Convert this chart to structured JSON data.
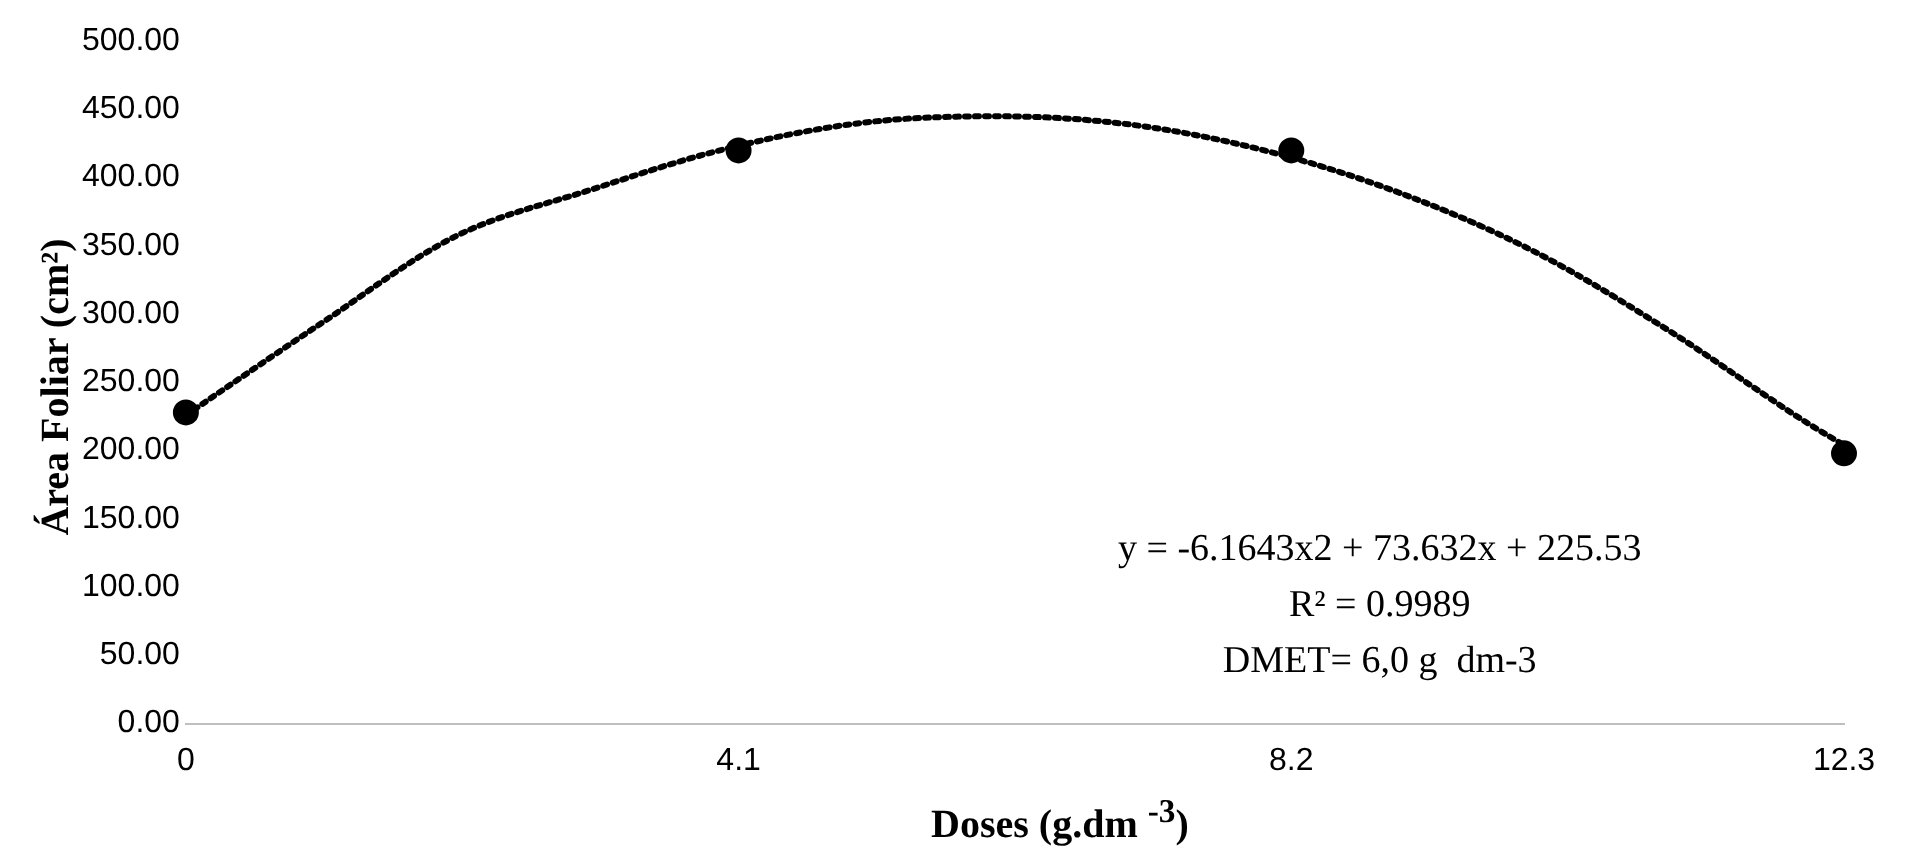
{
  "chart_data": {
    "type": "scatter",
    "xlabel": "Doses (g.dm $^{-3}$)",
    "ylabel": "Área Foliar (cm²)",
    "xlim": [
      0,
      12.3
    ],
    "xticks": [
      0,
      4.1,
      8.2,
      12.3
    ],
    "ylim": [
      0,
      500
    ],
    "yticks": [
      {
        "value": 0,
        "label": "0.00"
      },
      {
        "value": 50,
        "label": "50.00"
      },
      {
        "value": 100,
        "label": "100.00"
      },
      {
        "value": 150,
        "label": "150.00"
      },
      {
        "value": 200,
        "label": "200.00"
      },
      {
        "value": 250,
        "label": "250.00"
      },
      {
        "value": 300,
        "label": "300.00"
      },
      {
        "value": 350,
        "label": "350.00"
      },
      {
        "value": 400,
        "label": "400.00"
      },
      {
        "value": 450,
        "label": "450.00"
      },
      {
        "value": 500,
        "label": "500.00"
      }
    ],
    "grid": false,
    "legend": false,
    "series": [
      {
        "color": "#000000",
        "marker": "circle",
        "x": [
          0,
          4.1,
          8.2,
          12.3
        ],
        "values": [
          228,
          420,
          420,
          198
        ]
      },
      {
        "type": "line",
        "color": "#000000",
        "line_style": "dotted",
        "marker": "none",
        "x": [
          0,
          1,
          2,
          3,
          4,
          5,
          6,
          7,
          8,
          9,
          10,
          11,
          12,
          12.3
        ],
        "values": [
          226,
          293,
          357,
          391,
          421,
          440,
          445,
          439,
          420,
          389,
          346,
          288,
          222,
          204
        ]
      }
    ],
    "annotations": [
      "y = -6.1643x2 + 73.632x + 225.53",
      "R² = 0.9989",
      "DMET= 6,0 g  dm-3"
    ]
  }
}
